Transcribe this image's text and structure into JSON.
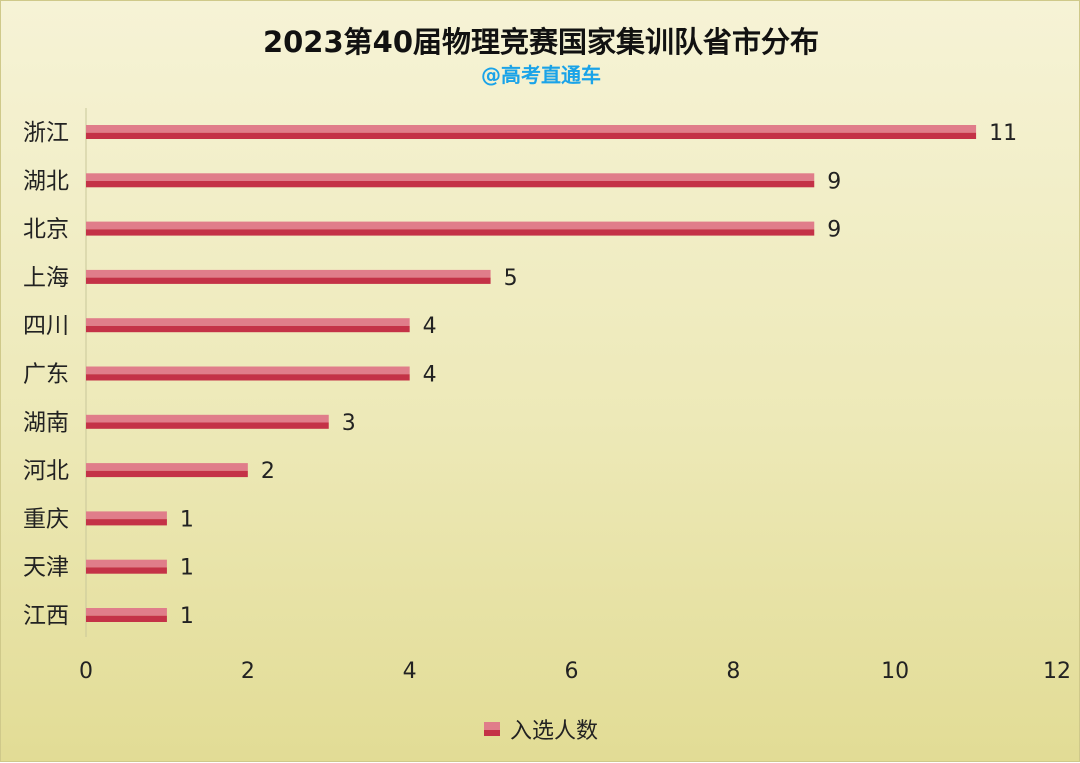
{
  "chart_data": {
    "type": "bar",
    "orientation": "horizontal",
    "title": "2023第40届物理竞赛国家集训队省市分布",
    "subtitle": "@高考直通车",
    "categories": [
      "浙江",
      "湖北",
      "北京",
      "上海",
      "四川",
      "广东",
      "湖南",
      "河北",
      "重庆",
      "天津",
      "江西"
    ],
    "series": [
      {
        "name": "入选人数",
        "values": [
          11,
          9,
          9,
          5,
          4,
          4,
          3,
          2,
          1,
          1,
          1
        ]
      }
    ],
    "xlim": [
      0,
      12
    ],
    "xticks": [
      0,
      2,
      4,
      6,
      8,
      10,
      12
    ],
    "data_labels": true,
    "grid": false,
    "legend_position": "bottom",
    "colors": {
      "bar_top": "#e07d8a",
      "bar_bottom": "#c43247",
      "subtitle": "#1aa3e8"
    }
  }
}
